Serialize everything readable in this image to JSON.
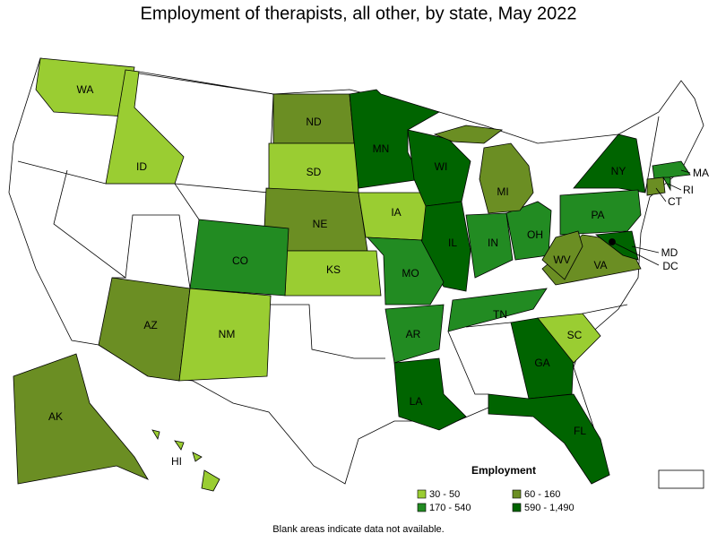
{
  "title": "Employment of therapists, all other, by state, May 2022",
  "states": [
    {
      "label": "WA",
      "color": "#9acd32"
    },
    {
      "label": "ID",
      "color": "#9acd32"
    },
    {
      "label": "ND",
      "color": "#6b8e23"
    },
    {
      "label": "SD",
      "color": "#9acd32"
    },
    {
      "label": "NE",
      "color": "#6b8e23"
    },
    {
      "label": "KS",
      "color": "#9acd32"
    },
    {
      "label": "IA",
      "color": "#9acd32"
    },
    {
      "label": "MN",
      "color": "#006400"
    },
    {
      "label": "WI",
      "color": "#006400"
    },
    {
      "label": "IL",
      "color": "#006400"
    },
    {
      "label": "IN",
      "color": "#228b22"
    },
    {
      "label": "OH",
      "color": "#228b22"
    },
    {
      "label": "MI",
      "color": "#6b8e23"
    },
    {
      "label": "MO",
      "color": "#228b22"
    },
    {
      "label": "AR",
      "color": "#228b22"
    },
    {
      "label": "LA",
      "color": "#006400"
    },
    {
      "label": "TN",
      "color": "#228b22"
    },
    {
      "label": "GA",
      "color": "#006400"
    },
    {
      "label": "FL",
      "color": "#006400"
    },
    {
      "label": "SC",
      "color": "#9acd32"
    },
    {
      "label": "NY",
      "color": "#006400"
    },
    {
      "label": "PA",
      "color": "#228b22"
    },
    {
      "label": "VA",
      "color": "#6b8e23"
    },
    {
      "label": "WV",
      "color": "#6b8e23"
    },
    {
      "label": "MD",
      "color": "#006400"
    },
    {
      "label": "DC",
      "color": "#000000"
    },
    {
      "label": "MA",
      "color": "#228b22"
    },
    {
      "label": "CT",
      "color": "#6b8e23"
    },
    {
      "label": "RI",
      "color": "#228b22"
    },
    {
      "label": "CO",
      "color": "#228b22"
    },
    {
      "label": "AZ",
      "color": "#6b8e23"
    },
    {
      "label": "NM",
      "color": "#9acd32"
    },
    {
      "label": "AK",
      "color": "#6b8e23"
    },
    {
      "label": "HI",
      "color": "#9acd32"
    }
  ],
  "legend": {
    "title": "Employment",
    "items": [
      {
        "label": "30 - 50",
        "color": "#9acd32"
      },
      {
        "label": "170 - 540",
        "color": "#228b22"
      },
      {
        "label": "60 - 160",
        "color": "#6b8e23"
      },
      {
        "label": "590 - 1,490",
        "color": "#006400"
      }
    ]
  },
  "footnote": "Blank areas indicate data not available."
}
